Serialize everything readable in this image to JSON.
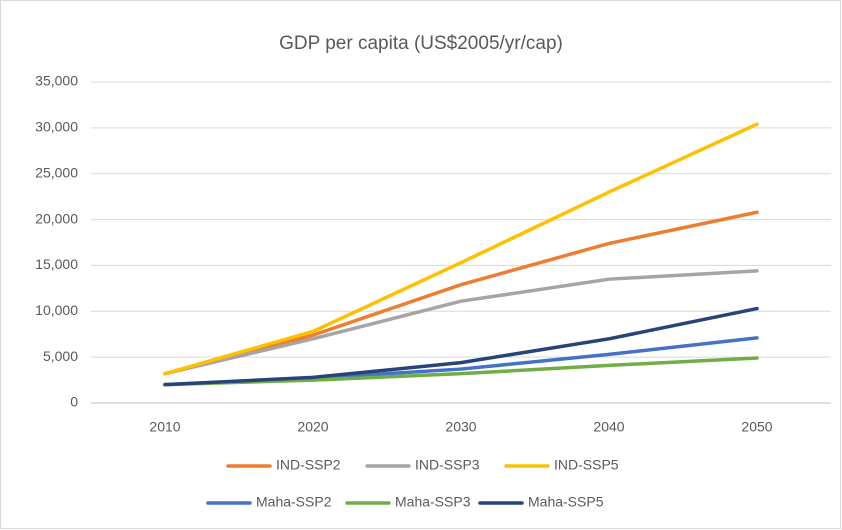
{
  "chart_data": {
    "type": "line",
    "title": "GDP per capita (US$2005/yr/cap)",
    "categories": [
      "2010",
      "2020",
      "2030",
      "2040",
      "2050"
    ],
    "series": [
      {
        "name": "IND-SSP2",
        "color": "#ed7d31",
        "values": [
          3200,
          7400,
          12900,
          17400,
          20800
        ]
      },
      {
        "name": "IND-SSP3",
        "color": "#a5a5a5",
        "values": [
          3200,
          7000,
          11100,
          13500,
          14400
        ]
      },
      {
        "name": "IND-SSP5",
        "color": "#ffc000",
        "values": [
          3200,
          7800,
          15300,
          23000,
          30400
        ]
      },
      {
        "name": "Maha-SSP2",
        "color": "#4472c4",
        "values": [
          2000,
          2700,
          3700,
          5300,
          7100
        ]
      },
      {
        "name": "Maha-SSP3",
        "color": "#70ad47",
        "values": [
          2000,
          2500,
          3200,
          4100,
          4900
        ]
      },
      {
        "name": "Maha-SSP5",
        "color": "#264478",
        "values": [
          2000,
          2800,
          4400,
          7000,
          10300
        ]
      }
    ],
    "ylim": [
      0,
      35000
    ],
    "yticks": [
      0,
      {
        "value": 5000,
        "label": "5,000"
      },
      {
        "value": 10000,
        "label": "10,000"
      },
      {
        "value": 15000,
        "label": "15,000"
      },
      {
        "value": 20000,
        "label": "20,000"
      },
      {
        "value": 25000,
        "label": "25,000"
      },
      {
        "value": 30000,
        "label": "30,000"
      },
      {
        "value": 35000,
        "label": "35,000"
      }
    ],
    "grid": true,
    "legend": "bottom"
  }
}
